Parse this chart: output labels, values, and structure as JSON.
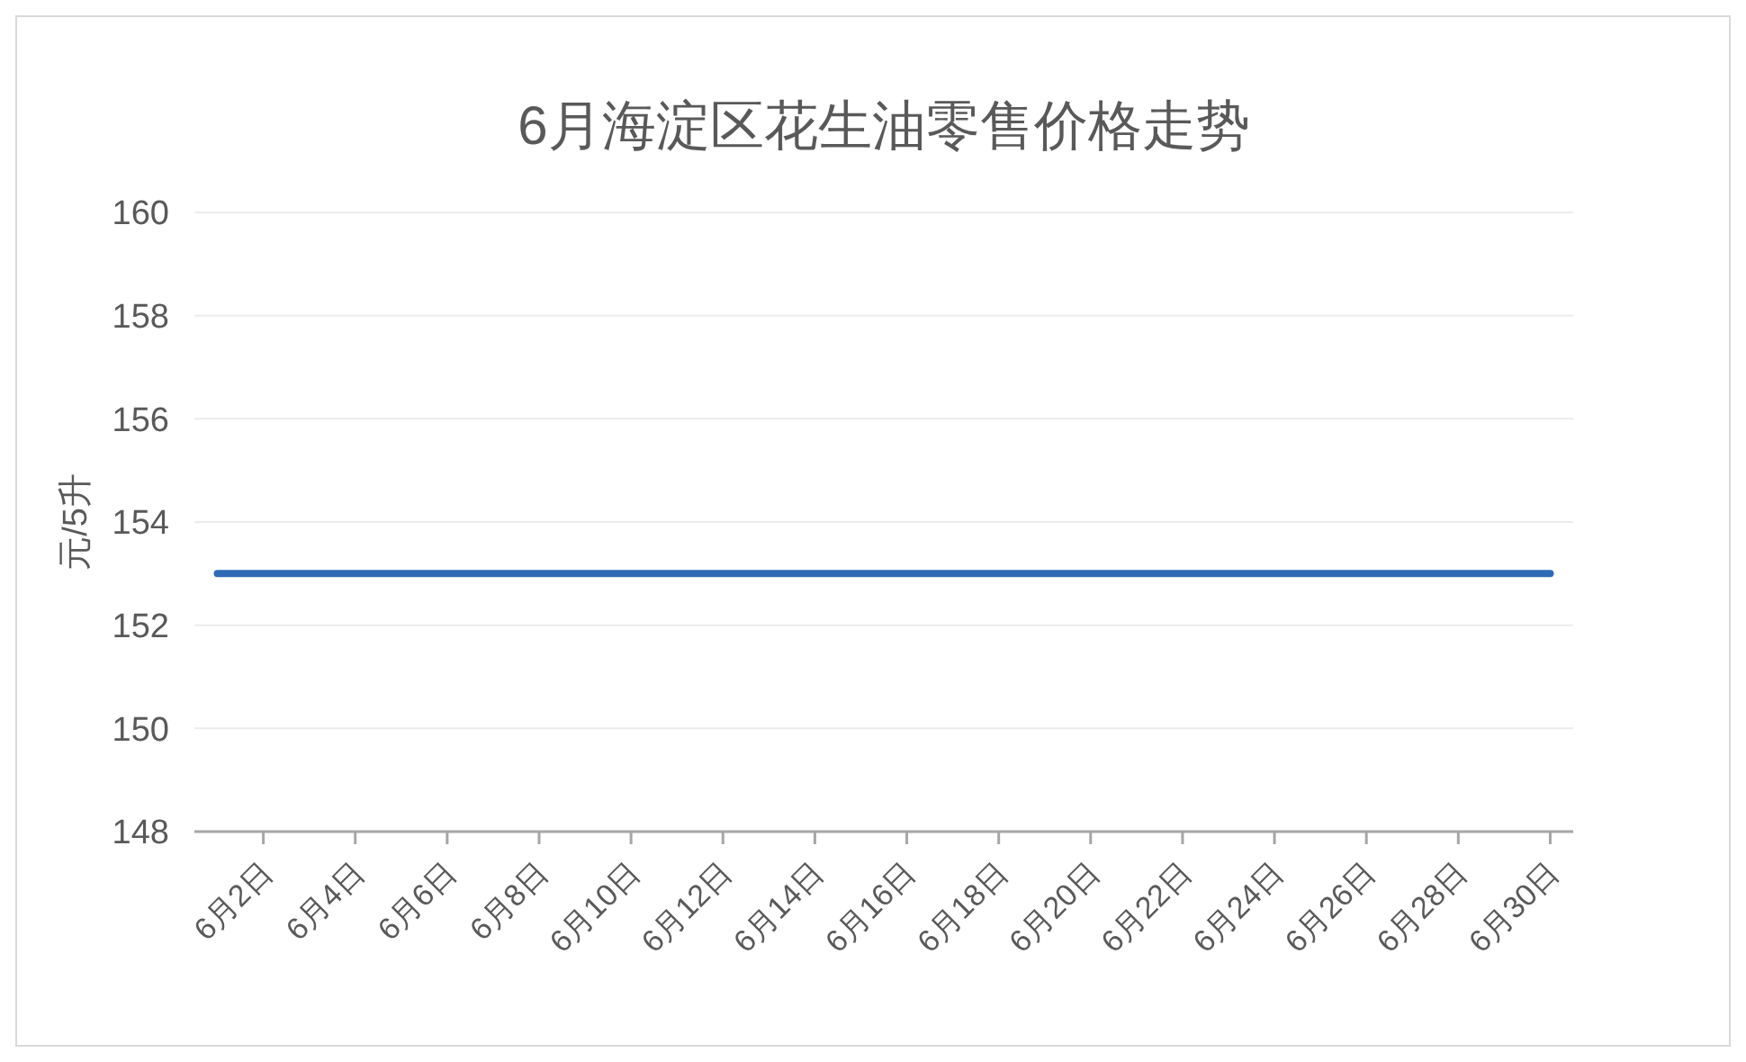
{
  "chart_data": {
    "type": "line",
    "title": "6月海淀区花生油零售价格走势",
    "ylabel": "元/5升",
    "categories": [
      null,
      "6月2日",
      null,
      "6月4日",
      null,
      "6月6日",
      null,
      "6月8日",
      null,
      "6月10日",
      null,
      "6月12日",
      null,
      "6月14日",
      null,
      "6月16日",
      null,
      "6月18日",
      null,
      "6月20日",
      null,
      "6月22日",
      null,
      "6月24日",
      null,
      "6月26日",
      null,
      "6月28日",
      null,
      "6月30日"
    ],
    "series": [
      {
        "color": "#2e6bb5",
        "values": [
          153,
          153,
          153,
          153,
          153,
          153,
          153,
          153,
          153,
          153,
          153,
          153,
          153,
          153,
          153,
          153,
          153,
          153,
          153,
          153,
          153,
          153,
          153,
          153,
          153,
          153,
          153,
          153,
          153,
          153
        ]
      }
    ],
    "ylim": [
      148,
      160
    ],
    "yticks": [
      148,
      150,
      152,
      154,
      156,
      158,
      160
    ],
    "grid": "y",
    "marker": "none",
    "line_style": "solid"
  }
}
